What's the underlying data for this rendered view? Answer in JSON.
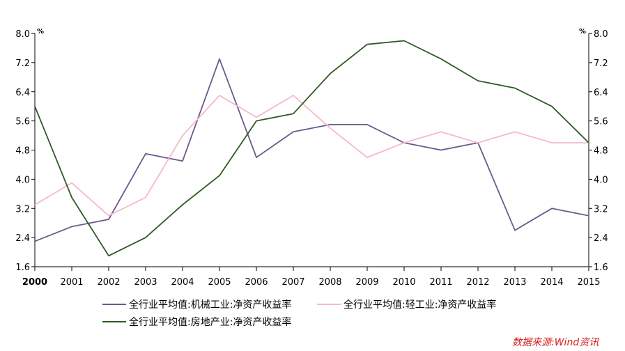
{
  "chart_data": {
    "type": "line",
    "x": [
      "2000",
      "2001",
      "2002",
      "2003",
      "2004",
      "2005",
      "2006",
      "2007",
      "2008",
      "2009",
      "2010",
      "2011",
      "2012",
      "2013",
      "2014",
      "2015"
    ],
    "series": [
      {
        "name": "全行业平均值:机械工业:净资产收益率",
        "color": "#6a5a8c",
        "values": [
          2.3,
          2.7,
          2.9,
          4.7,
          4.5,
          7.3,
          4.6,
          5.3,
          5.5,
          5.5,
          5.0,
          4.8,
          5.0,
          2.6,
          3.2,
          3.0
        ]
      },
      {
        "name": "全行业平均值:轻工业:净资产收益率",
        "color": "#f5b8cc",
        "values": [
          3.3,
          3.9,
          3.0,
          3.5,
          5.2,
          6.3,
          5.7,
          6.3,
          5.4,
          4.6,
          5.0,
          5.3,
          5.0,
          5.3,
          5.0,
          5.0
        ]
      },
      {
        "name": "全行业平均值:房地产业:净资产收益率",
        "color": "#2e5a24",
        "values": [
          6.0,
          3.5,
          1.9,
          2.4,
          3.3,
          4.1,
          5.6,
          5.8,
          6.9,
          7.7,
          7.8,
          7.3,
          6.7,
          6.5,
          6.0,
          5.0
        ]
      }
    ],
    "y_ticks": [
      "8.0",
      "7.2",
      "6.4",
      "5.6",
      "4.8",
      "4.0",
      "3.2",
      "2.4",
      "1.6"
    ],
    "ylim": [
      1.6,
      8.0
    ],
    "left_unit": "%",
    "right_unit": "%",
    "grid": false,
    "legend": "bottom"
  },
  "source_note": "数据来源:Wind资讯"
}
